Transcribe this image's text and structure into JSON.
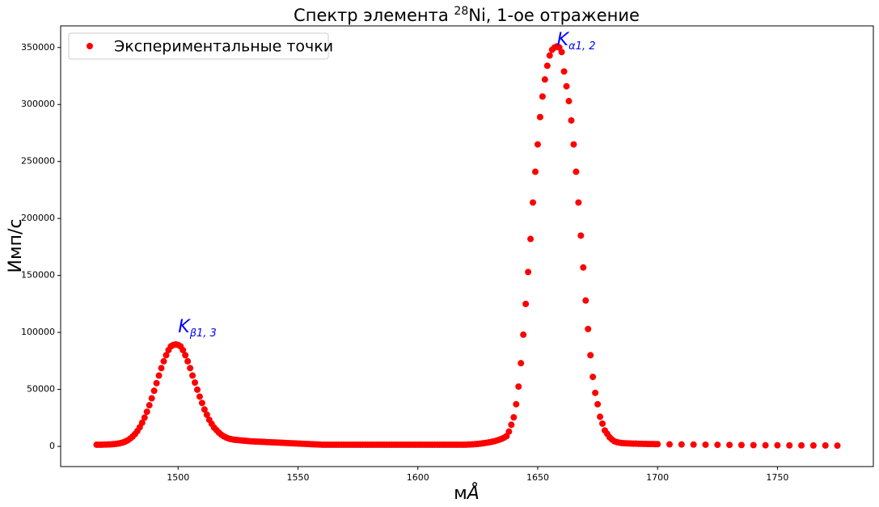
{
  "chart_data": {
    "type": "scatter",
    "title": {
      "prefix": "Спектр элемента ",
      "superscript": "28",
      "suffix": "Ni, 1-ое отражение"
    },
    "xlabel": {
      "prefix": "м",
      "italic": "Å"
    },
    "ylabel": "Имп/с",
    "legend": "upper left",
    "xlim": [
      1451,
      1790
    ],
    "ylim": [
      -17700,
      369000
    ],
    "xticks": [
      1500,
      1550,
      1600,
      1650,
      1700,
      1750
    ],
    "yticks": [
      0,
      50000,
      100000,
      150000,
      200000,
      250000,
      300000,
      350000
    ],
    "annotations": [
      {
        "text": "K",
        "subscript": "β1, 3",
        "x": 1500,
        "y": 100000,
        "color": "blue"
      },
      {
        "text": "K",
        "subscript": "α1, 2",
        "x": 1658,
        "y": 352000,
        "color": "blue"
      }
    ],
    "series": [
      {
        "name": "Экспериментальные точки",
        "color": "red",
        "x": [
          1466,
          1467,
          1468,
          1469,
          1470,
          1471,
          1472,
          1473,
          1474,
          1475,
          1476,
          1477,
          1478,
          1479,
          1480,
          1481,
          1482,
          1483,
          1484,
          1485,
          1486,
          1487,
          1488,
          1489,
          1490,
          1491,
          1492,
          1493,
          1494,
          1495,
          1496,
          1497,
          1498,
          1499,
          1500,
          1501,
          1502,
          1503,
          1504,
          1505,
          1506,
          1507,
          1508,
          1509,
          1510,
          1511,
          1512,
          1513,
          1514,
          1515,
          1516,
          1517,
          1518,
          1519,
          1520,
          1521,
          1522,
          1523,
          1524,
          1525,
          1526,
          1527,
          1528,
          1529,
          1530,
          1531,
          1532,
          1533,
          1534,
          1535,
          1536,
          1537,
          1538,
          1539,
          1540,
          1541,
          1542,
          1543,
          1544,
          1545,
          1546,
          1547,
          1548,
          1549,
          1550,
          1551,
          1552,
          1553,
          1554,
          1555,
          1556,
          1557,
          1558,
          1559,
          1560,
          1561,
          1562,
          1563,
          1564,
          1565,
          1566,
          1567,
          1568,
          1569,
          1570,
          1571,
          1572,
          1573,
          1574,
          1575,
          1576,
          1577,
          1578,
          1579,
          1580,
          1581,
          1582,
          1583,
          1584,
          1585,
          1586,
          1587,
          1588,
          1589,
          1590,
          1591,
          1592,
          1593,
          1594,
          1595,
          1596,
          1597,
          1598,
          1599,
          1600,
          1601,
          1602,
          1603,
          1604,
          1605,
          1606,
          1607,
          1608,
          1609,
          1610,
          1611,
          1612,
          1613,
          1614,
          1615,
          1616,
          1617,
          1618,
          1619,
          1620,
          1621,
          1622,
          1623,
          1624,
          1625,
          1626,
          1627,
          1628,
          1629,
          1630,
          1631,
          1632,
          1633,
          1634,
          1635,
          1636,
          1637,
          1638,
          1639,
          1640,
          1641,
          1642,
          1643,
          1644,
          1645,
          1646,
          1647,
          1648,
          1649,
          1650,
          1651,
          1652,
          1653,
          1654,
          1655,
          1656,
          1657,
          1658,
          1659,
          1660,
          1661,
          1662,
          1663,
          1664,
          1665,
          1666,
          1667,
          1668,
          1669,
          1670,
          1671,
          1672,
          1673,
          1674,
          1675,
          1676,
          1677,
          1678,
          1679,
          1680,
          1681,
          1682,
          1683,
          1684,
          1685,
          1686,
          1687,
          1688,
          1689,
          1690,
          1691,
          1692,
          1693,
          1694,
          1695,
          1696,
          1697,
          1698,
          1699,
          1700,
          1705,
          1710,
          1715,
          1720,
          1725,
          1730,
          1735,
          1740,
          1745,
          1750,
          1755,
          1760,
          1765,
          1770,
          1775
        ],
        "values": [
          1500,
          1500,
          1500,
          1600,
          1600,
          1700,
          1800,
          2000,
          2200,
          2500,
          2900,
          3500,
          4300,
          5400,
          6800,
          8600,
          10800,
          13500,
          16800,
          20800,
          25300,
          30400,
          36100,
          42200,
          48800,
          55500,
          62200,
          68700,
          74700,
          80000,
          84500,
          87800,
          89000,
          89500,
          89000,
          87800,
          84500,
          80000,
          74700,
          68700,
          62200,
          56000,
          49800,
          43700,
          38100,
          32400,
          27800,
          23300,
          19800,
          16500,
          14300,
          12100,
          10300,
          8900,
          7800,
          7000,
          6400,
          6000,
          5700,
          5500,
          5300,
          5100,
          4900,
          4700,
          4500,
          4400,
          4300,
          4200,
          4100,
          4000,
          3900,
          3800,
          3700,
          3600,
          3500,
          3400,
          3300,
          3200,
          3100,
          3000,
          2900,
          2800,
          2700,
          2600,
          2500,
          2400,
          2300,
          2200,
          2100,
          2000,
          1900,
          1800,
          1700,
          1600,
          1500,
          1500,
          1500,
          1500,
          1500,
          1500,
          1500,
          1500,
          1500,
          1500,
          1500,
          1500,
          1500,
          1500,
          1500,
          1500,
          1500,
          1500,
          1500,
          1500,
          1500,
          1500,
          1500,
          1500,
          1500,
          1500,
          1500,
          1500,
          1500,
          1500,
          1500,
          1500,
          1500,
          1500,
          1500,
          1500,
          1500,
          1500,
          1500,
          1500,
          1500,
          1500,
          1500,
          1500,
          1500,
          1500,
          1500,
          1500,
          1500,
          1500,
          1500,
          1500,
          1500,
          1500,
          1500,
          1500,
          1500,
          1500,
          1500,
          1500,
          1500,
          1600,
          1700,
          1800,
          2000,
          2200,
          2400,
          2700,
          3000,
          3300,
          3700,
          4100,
          4600,
          5200,
          5900,
          6700,
          7700,
          9000,
          13000,
          19000,
          25500,
          37000,
          52500,
          73000,
          98000,
          125000,
          153000,
          182000,
          214000,
          241000,
          265000,
          289000,
          307000,
          322000,
          334000,
          343000,
          348000,
          350000,
          351000,
          350000,
          346000,
          329000,
          316000,
          303000,
          286000,
          265000,
          241000,
          214000,
          185000,
          157000,
          128000,
          103000,
          80000,
          61000,
          47000,
          37000,
          26000,
          20000,
          14000,
          11000,
          8000,
          6000,
          4500,
          3800,
          3300,
          3000,
          2800,
          2700,
          2600,
          2500,
          2400,
          2400,
          2300,
          2300,
          2200,
          2200,
          2100,
          2100,
          2100,
          2000,
          2000,
          1800,
          1700,
          1600,
          1500,
          1400,
          1300,
          1200,
          1100,
          1000,
          1000,
          900,
          900,
          800,
          800,
          700
        ]
      }
    ]
  }
}
